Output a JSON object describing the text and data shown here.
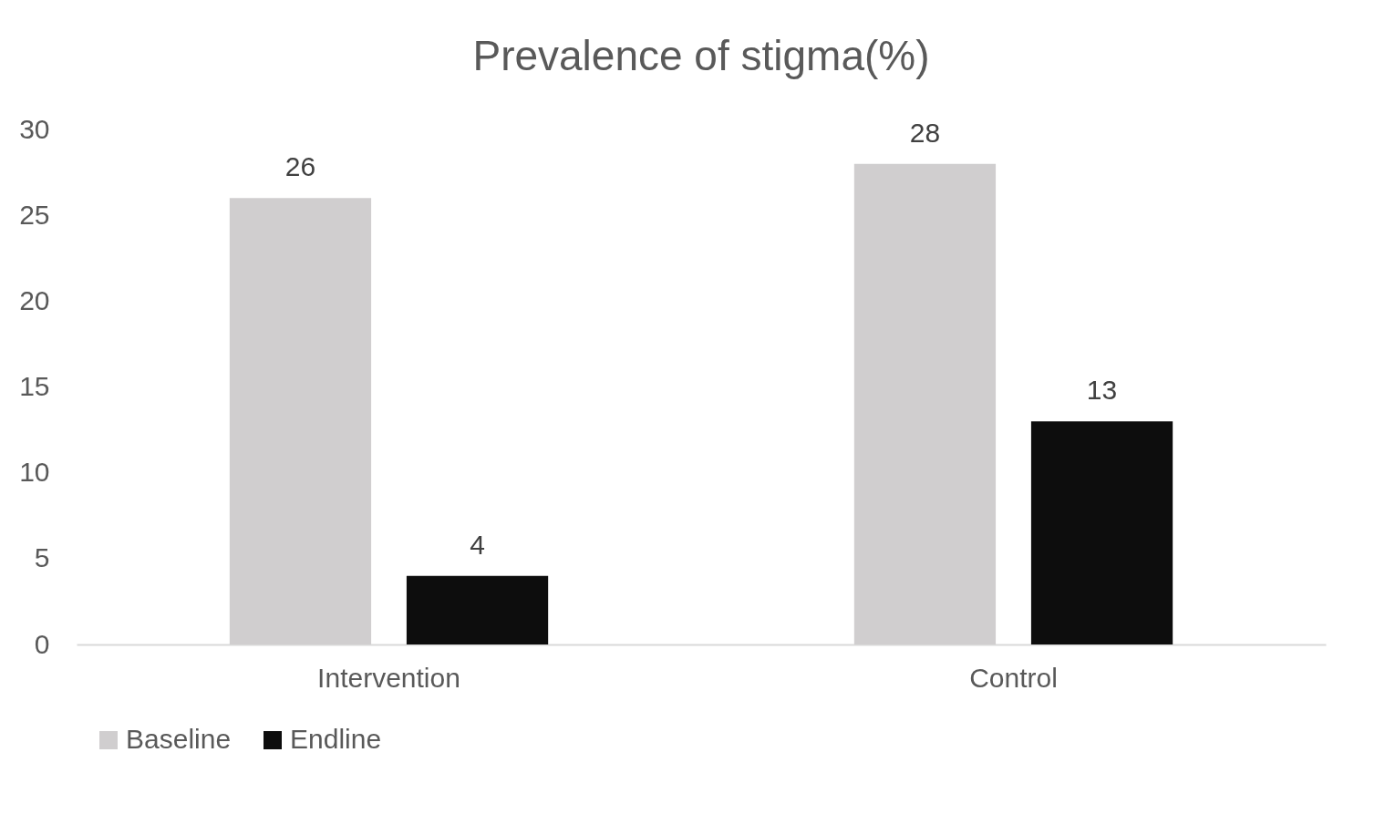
{
  "chart_data": {
    "type": "bar",
    "title": "Prevalence of stigma(%)",
    "categories": [
      "Intervention",
      "Control"
    ],
    "series": [
      {
        "name": "Baseline",
        "color": "#d0cecf",
        "values": [
          26,
          28
        ]
      },
      {
        "name": "Endline",
        "color": "#0d0d0d",
        "values": [
          4,
          13
        ]
      }
    ],
    "ylim": [
      0,
      30
    ],
    "yticks": [
      0,
      5,
      10,
      15,
      20,
      25,
      30
    ],
    "data_labels": true,
    "legend": "bottom",
    "grid": false
  }
}
